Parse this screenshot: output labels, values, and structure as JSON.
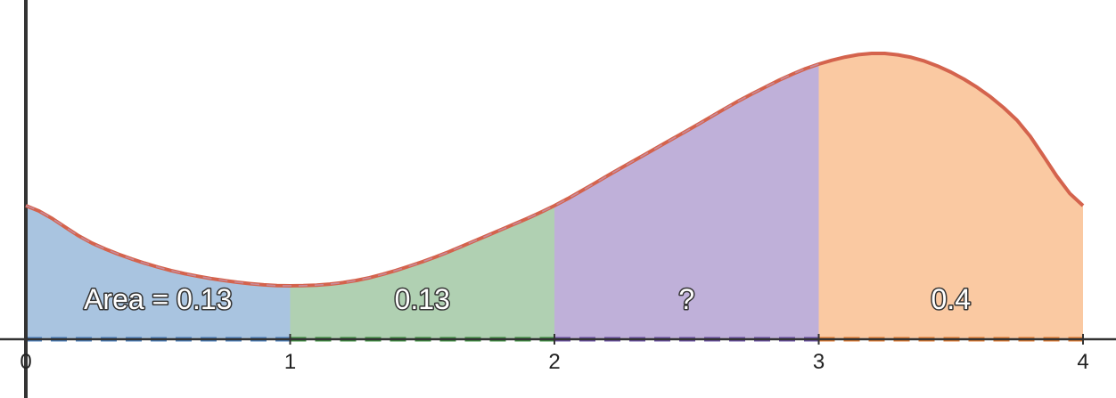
{
  "chart_data": {
    "type": "area",
    "x_ticks": [
      "0",
      "1",
      "2",
      "3",
      "4"
    ],
    "xlim": [
      0,
      4
    ],
    "ylim": [
      -0.22,
      1.27
    ],
    "grid": false,
    "curve": {
      "x": [
        0,
        0.25,
        0.5,
        0.75,
        1.0,
        1.25,
        1.5,
        1.75,
        2.0,
        2.25,
        2.5,
        2.75,
        3.0,
        3.25,
        3.5,
        3.75,
        4.0
      ],
      "y": [
        0.5,
        0.36,
        0.27,
        0.22,
        0.2,
        0.22,
        0.29,
        0.39,
        0.5,
        0.64,
        0.78,
        0.92,
        1.03,
        1.07,
        1.0,
        0.82,
        0.5
      ]
    },
    "color": "#d4634d",
    "regions": [
      {
        "from": 0,
        "to": 1,
        "label": "Area = 0.13",
        "color": "#a9c4e0",
        "edge": "#4a7ebb"
      },
      {
        "from": 1,
        "to": 2,
        "label": "0.13",
        "color": "#b0d0b2",
        "edge": "#3c8c3f"
      },
      {
        "from": 2,
        "to": 3,
        "label": "?",
        "color": "#bfb0d9",
        "edge": "#6a4fa3"
      },
      {
        "from": 3,
        "to": 4,
        "label": "0.4",
        "color": "#fac9a2",
        "edge": "#e07b30"
      }
    ]
  }
}
